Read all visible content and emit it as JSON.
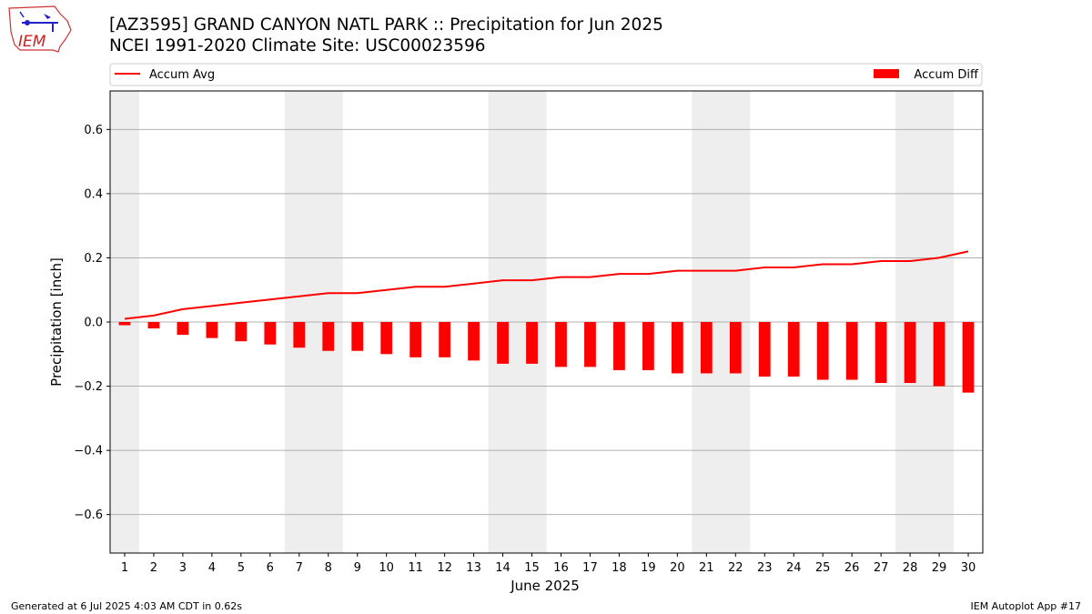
{
  "header": {
    "title_line1": "[AZ3595] GRAND CANYON NATL PARK :: Precipitation for Jun 2025",
    "title_line2": "NCEI 1991-2020 Climate Site: USC00023596",
    "logo_text": "IEM"
  },
  "footer": {
    "generated": "Generated at 6 Jul 2025 4:03 AM CDT in 0.62s",
    "app": "IEM Autoplot App #17"
  },
  "chart_data": {
    "type": "bar",
    "xlabel": "June 2025",
    "ylabel": "Precipitation [inch]",
    "ylim": [
      -0.72,
      0.72
    ],
    "yticks": [
      -0.6,
      -0.4,
      -0.2,
      0.0,
      0.2,
      0.4,
      0.6
    ],
    "ytick_labels": [
      "−0.6",
      "−0.4",
      "−0.2",
      "0.0",
      "0.2",
      "0.4",
      "0.6"
    ],
    "categories": [
      "1",
      "2",
      "3",
      "4",
      "5",
      "6",
      "7",
      "8",
      "9",
      "10",
      "11",
      "12",
      "13",
      "14",
      "15",
      "16",
      "17",
      "18",
      "19",
      "20",
      "21",
      "22",
      "23",
      "24",
      "25",
      "26",
      "27",
      "28",
      "29",
      "30"
    ],
    "series": [
      {
        "name": "Accum Avg",
        "type": "line",
        "color": "#ff0000",
        "values": [
          0.01,
          0.02,
          0.04,
          0.05,
          0.06,
          0.07,
          0.08,
          0.09,
          0.09,
          0.1,
          0.11,
          0.11,
          0.12,
          0.13,
          0.13,
          0.14,
          0.14,
          0.15,
          0.15,
          0.16,
          0.16,
          0.16,
          0.17,
          0.17,
          0.18,
          0.18,
          0.19,
          0.19,
          0.2,
          0.22
        ]
      },
      {
        "name": "Accum Diff",
        "type": "bar",
        "color": "#ff0000",
        "values": [
          -0.01,
          -0.02,
          -0.04,
          -0.05,
          -0.06,
          -0.07,
          -0.08,
          -0.09,
          -0.09,
          -0.1,
          -0.11,
          -0.11,
          -0.12,
          -0.13,
          -0.13,
          -0.14,
          -0.14,
          -0.15,
          -0.15,
          -0.16,
          -0.16,
          -0.16,
          -0.17,
          -0.17,
          -0.18,
          -0.18,
          -0.19,
          -0.19,
          -0.2,
          -0.22
        ]
      }
    ],
    "weekend_shading": [
      [
        1,
        1
      ],
      [
        7,
        8
      ],
      [
        14,
        15
      ],
      [
        21,
        22
      ],
      [
        28,
        29
      ]
    ],
    "shading_color": "#eeeeee",
    "grid": "y",
    "legend": "top, above plot (line left, bar right)"
  }
}
